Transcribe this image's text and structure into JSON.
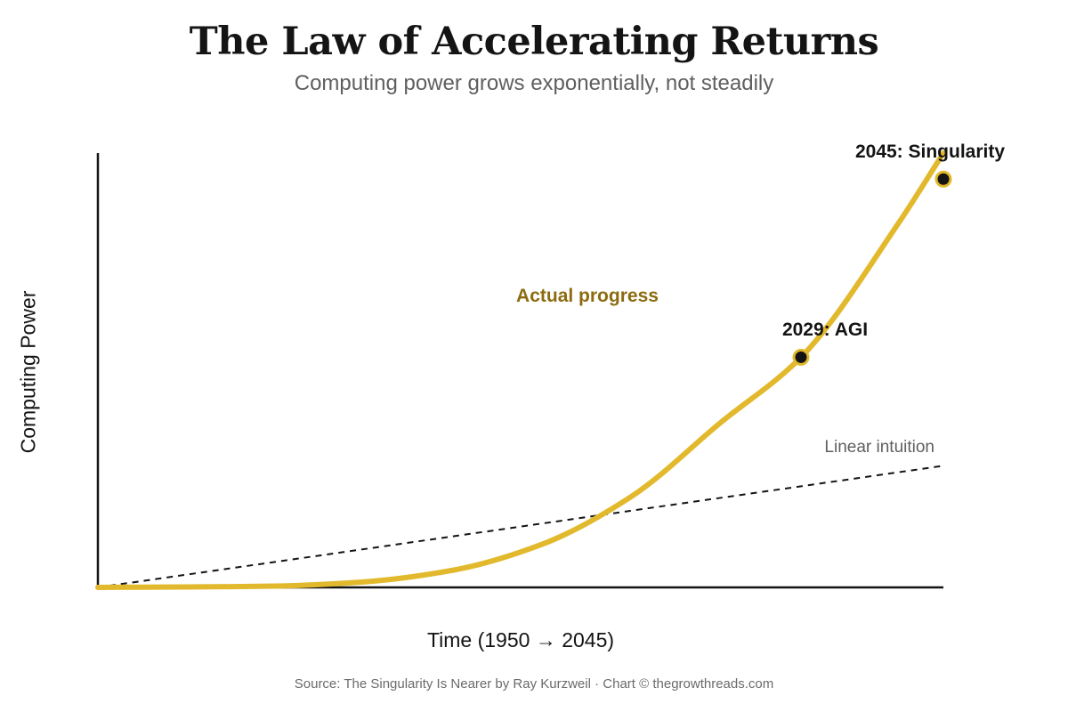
{
  "title": "The Law of Accelerating Returns",
  "subtitle": "Computing power grows exponentially, not steadily",
  "footer": {
    "source": "Source: The Singularity Is Nearer by Ray Kurzweil · Chart © thegrowthreads.com"
  },
  "colors": {
    "accent": "#E2B92C",
    "accent_label": "#8C6B0F",
    "axis": "#141414",
    "dashed": "#141414",
    "muted_text": "#5f5f5f"
  },
  "chart_data": {
    "type": "line",
    "xlabel": "Time (1950 → 2045)",
    "ylabel": "Computing Power",
    "xlim": [
      1950,
      2045
    ],
    "ylim": [
      0,
      100
    ],
    "grid": false,
    "axis_ticks": false,
    "series": [
      {
        "name": "Actual progress",
        "style": "solid",
        "x": [
          1950,
          1960,
          1970,
          1980,
          1990,
          2000,
          2010,
          2020,
          2029,
          2040,
          2045
        ],
        "y": [
          0,
          0.1,
          0.3,
          1.3,
          4,
          10,
          21,
          38,
          53,
          84,
          100
        ]
      },
      {
        "name": "Linear intuition",
        "style": "dashed",
        "x": [
          1950,
          2045
        ],
        "y": [
          0,
          28
        ]
      }
    ],
    "annotations": [
      {
        "label": "2029: AGI",
        "x": 2029,
        "y": 53
      },
      {
        "label": "2045: Singularity",
        "x": 2045,
        "y": 94
      }
    ]
  }
}
